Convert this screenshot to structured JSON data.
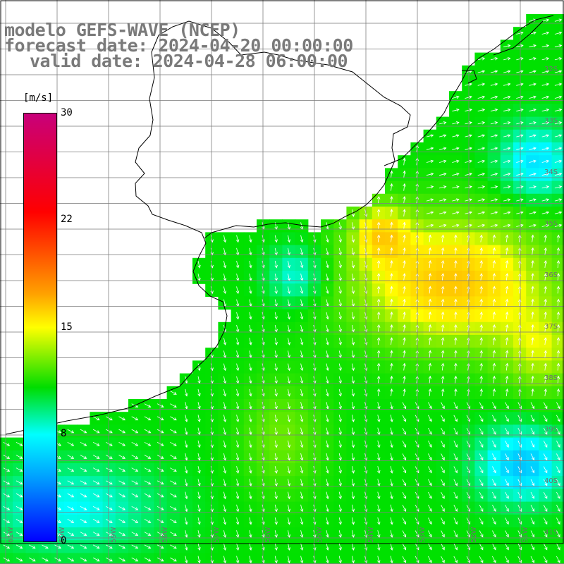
{
  "title": {
    "model": "modelo GEFS-WAVE (NCEP)",
    "forecast": "forecast date: 2024-04-20 00:00:00",
    "valid": "valid date: 2024-04-28 06:00:00"
  },
  "colorbar": {
    "unit": "[m/s]",
    "ticks": [
      {
        "label": "30",
        "value": 30
      },
      {
        "label": "22",
        "value": 22
      },
      {
        "label": "15",
        "value": 15
      },
      {
        "label": "8",
        "value": 8
      },
      {
        "label": "0",
        "value": 0
      }
    ],
    "colors": [
      "#0000ff",
      "#00a0ff",
      "#00ffff",
      "#00dd00",
      "#ffff00",
      "#ffa000",
      "#ff0000",
      "#c8007a"
    ]
  },
  "lat_labels": [
    "32S",
    "33S",
    "34S",
    "35S",
    "36S",
    "37S",
    "38S",
    "39S",
    "40S",
    "41S"
  ],
  "lon_labels": [
    "61W",
    "60W",
    "59W",
    "58W",
    "57W",
    "56W",
    "55W",
    "54W",
    "53W",
    "52W",
    "51W"
  ],
  "background_color": "#ffffff",
  "grid_color": "#808080",
  "coast_color": "#000000"
}
